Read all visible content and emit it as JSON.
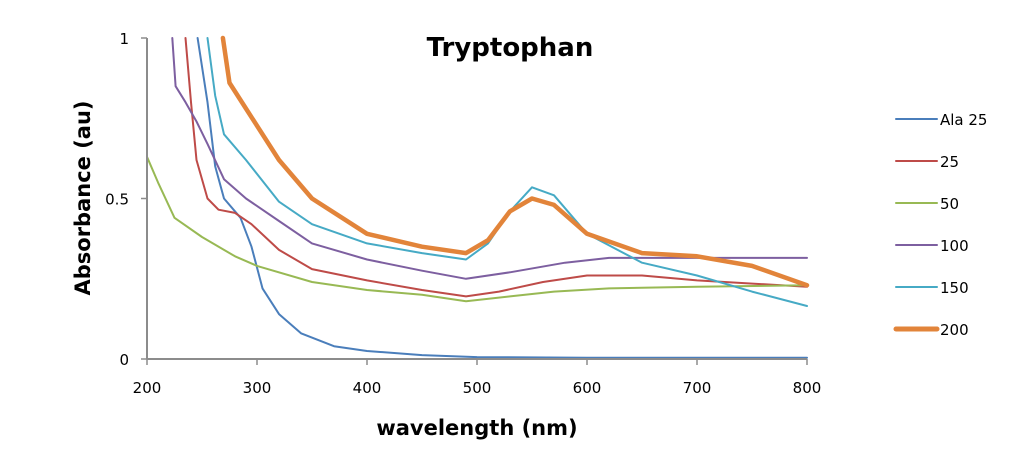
{
  "chart_data": {
    "type": "line",
    "title": "Tryptophan",
    "xlabel": "wavelength (nm)",
    "ylabel": "Absorbance (au)",
    "xlim": [
      200,
      800
    ],
    "ylim": [
      0,
      1
    ],
    "xticks": [
      200,
      300,
      400,
      500,
      600,
      700,
      800
    ],
    "xtick_labels": [
      "200",
      "300",
      "400",
      "500",
      "600",
      "700",
      "800"
    ],
    "yticks": [
      0,
      0.5,
      1
    ],
    "ytick_labels": [
      "0",
      "0.5",
      "1"
    ],
    "grid": false,
    "legend_position": "right",
    "series": [
      {
        "name": "Ala 25",
        "color": "#4a7ebb",
        "emphasis": false,
        "points": [
          [
            246,
            1
          ],
          [
            255,
            0.8
          ],
          [
            262,
            0.6
          ],
          [
            270,
            0.5
          ],
          [
            285,
            0.44
          ],
          [
            295,
            0.35
          ],
          [
            305,
            0.22
          ],
          [
            320,
            0.14
          ],
          [
            340,
            0.08
          ],
          [
            370,
            0.04
          ],
          [
            400,
            0.025
          ],
          [
            450,
            0.012
          ],
          [
            500,
            0.006
          ],
          [
            600,
            0.004
          ],
          [
            800,
            0.004
          ]
        ]
      },
      {
        "name": "25",
        "color": "#be4b48",
        "emphasis": false,
        "points": [
          [
            235,
            1
          ],
          [
            240,
            0.8
          ],
          [
            245,
            0.62
          ],
          [
            255,
            0.5
          ],
          [
            265,
            0.465
          ],
          [
            280,
            0.455
          ],
          [
            295,
            0.42
          ],
          [
            320,
            0.34
          ],
          [
            350,
            0.28
          ],
          [
            400,
            0.245
          ],
          [
            450,
            0.215
          ],
          [
            490,
            0.195
          ],
          [
            520,
            0.21
          ],
          [
            560,
            0.24
          ],
          [
            600,
            0.26
          ],
          [
            650,
            0.26
          ],
          [
            700,
            0.245
          ],
          [
            800,
            0.225
          ]
        ]
      },
      {
        "name": "50",
        "color": "#98b954",
        "emphasis": false,
        "points": [
          [
            200,
            0.63
          ],
          [
            210,
            0.55
          ],
          [
            225,
            0.44
          ],
          [
            250,
            0.38
          ],
          [
            280,
            0.32
          ],
          [
            300,
            0.29
          ],
          [
            350,
            0.24
          ],
          [
            400,
            0.215
          ],
          [
            450,
            0.2
          ],
          [
            490,
            0.18
          ],
          [
            530,
            0.195
          ],
          [
            570,
            0.21
          ],
          [
            620,
            0.22
          ],
          [
            700,
            0.225
          ],
          [
            800,
            0.23
          ]
        ]
      },
      {
        "name": "100",
        "color": "#7d5fa0",
        "emphasis": false,
        "points": [
          [
            223,
            1
          ],
          [
            226,
            0.85
          ],
          [
            235,
            0.8
          ],
          [
            245,
            0.74
          ],
          [
            255,
            0.67
          ],
          [
            270,
            0.56
          ],
          [
            290,
            0.5
          ],
          [
            320,
            0.43
          ],
          [
            350,
            0.36
          ],
          [
            400,
            0.31
          ],
          [
            450,
            0.275
          ],
          [
            490,
            0.25
          ],
          [
            530,
            0.27
          ],
          [
            580,
            0.3
          ],
          [
            620,
            0.315
          ],
          [
            700,
            0.315
          ],
          [
            800,
            0.315
          ]
        ]
      },
      {
        "name": "150",
        "color": "#46aac5",
        "emphasis": false,
        "points": [
          [
            255,
            1
          ],
          [
            262,
            0.82
          ],
          [
            270,
            0.7
          ],
          [
            290,
            0.62
          ],
          [
            320,
            0.49
          ],
          [
            350,
            0.42
          ],
          [
            400,
            0.36
          ],
          [
            450,
            0.33
          ],
          [
            490,
            0.31
          ],
          [
            510,
            0.36
          ],
          [
            530,
            0.46
          ],
          [
            550,
            0.535
          ],
          [
            570,
            0.51
          ],
          [
            600,
            0.39
          ],
          [
            650,
            0.3
          ],
          [
            700,
            0.26
          ],
          [
            750,
            0.21
          ],
          [
            800,
            0.165
          ]
        ]
      },
      {
        "name": "200",
        "color": "#e2843a",
        "emphasis": true,
        "points": [
          [
            269,
            1
          ],
          [
            275,
            0.86
          ],
          [
            290,
            0.78
          ],
          [
            320,
            0.62
          ],
          [
            350,
            0.5
          ],
          [
            400,
            0.39
          ],
          [
            450,
            0.35
          ],
          [
            490,
            0.33
          ],
          [
            510,
            0.37
          ],
          [
            530,
            0.46
          ],
          [
            550,
            0.5
          ],
          [
            570,
            0.48
          ],
          [
            600,
            0.39
          ],
          [
            650,
            0.33
          ],
          [
            700,
            0.32
          ],
          [
            750,
            0.29
          ],
          [
            800,
            0.23
          ]
        ]
      }
    ]
  }
}
